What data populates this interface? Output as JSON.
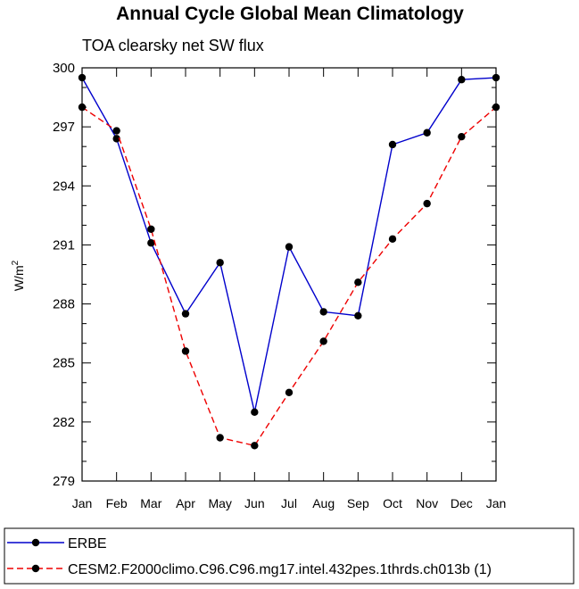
{
  "chart_data": {
    "type": "line",
    "title": "Annual Cycle Global Mean Climatology",
    "subtitle": "TOA clearsky net SW flux",
    "ylabel": "W/m",
    "ylabel_sup": "2",
    "xlabel": "",
    "categories": [
      "Jan",
      "Feb",
      "Mar",
      "Apr",
      "May",
      "Jun",
      "Jul",
      "Aug",
      "Sep",
      "Oct",
      "Nov",
      "Dec",
      "Jan"
    ],
    "ylim": [
      279,
      300
    ],
    "yticks": [
      "300",
      "297",
      "294",
      "291",
      "288",
      "285",
      "282",
      "279"
    ],
    "legend_position": "bottom",
    "series": [
      {
        "name": "ERBE",
        "color": "#0000cc",
        "dash": "solid",
        "values": [
          299.5,
          296.4,
          291.1,
          287.5,
          290.1,
          282.5,
          290.9,
          287.6,
          287.4,
          296.1,
          296.7,
          299.4,
          299.5
        ]
      },
      {
        "name": "CESM2.F2000climo.C96.C96.mg17.intel.432pes.1thrds.ch013b (1)",
        "color": "#ee0000",
        "dash": "dashed",
        "values": [
          298.0,
          296.8,
          291.8,
          285.6,
          281.2,
          280.8,
          283.5,
          286.1,
          289.1,
          291.3,
          293.1,
          296.5,
          298.0
        ]
      }
    ]
  }
}
